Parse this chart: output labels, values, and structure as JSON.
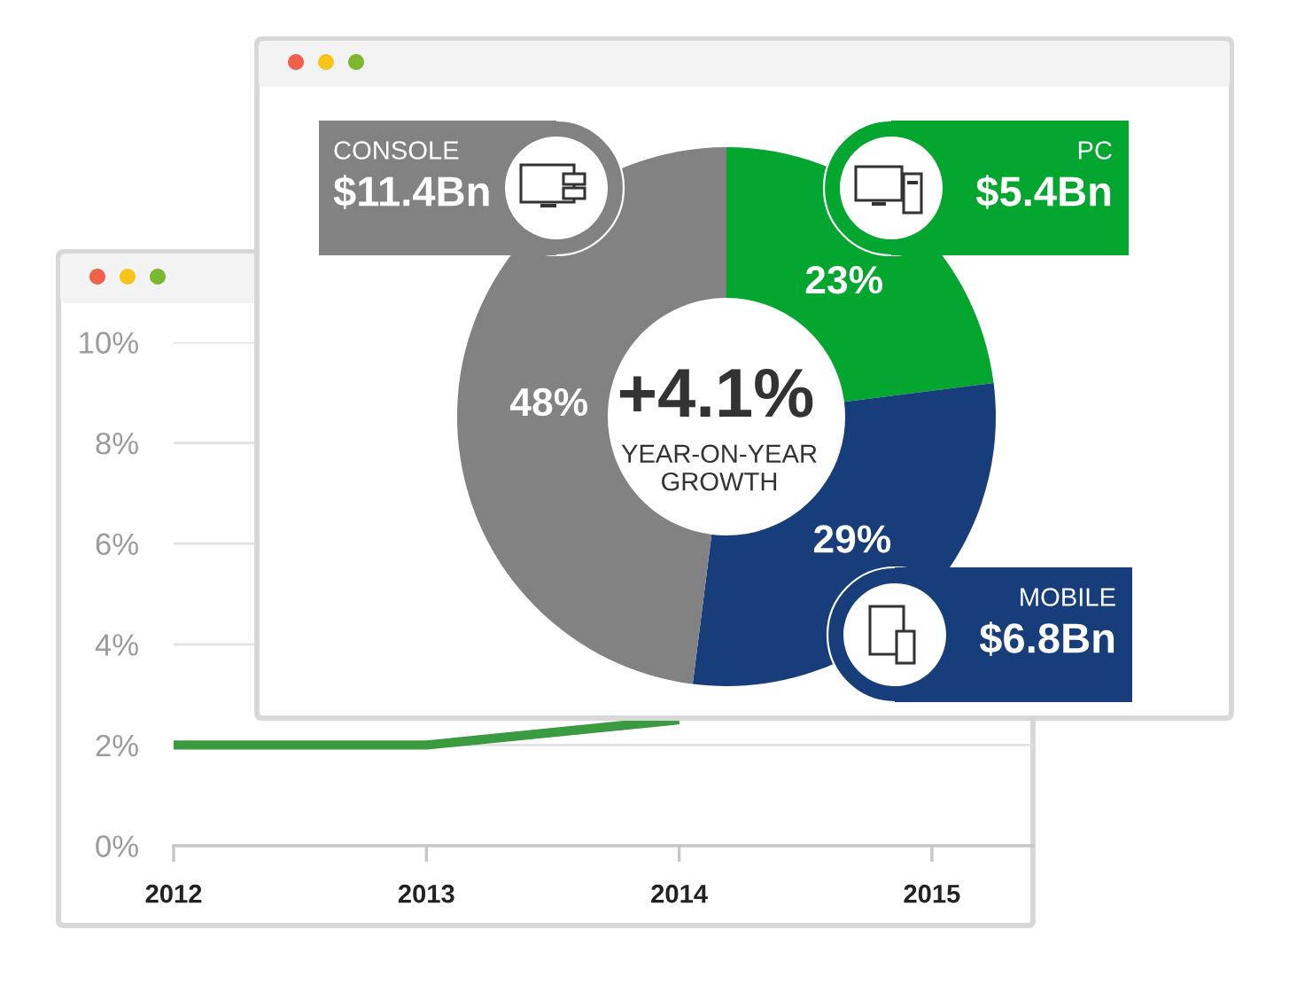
{
  "chart_data": [
    {
      "type": "line",
      "categories": [
        "2012",
        "2013",
        "2014",
        "2015"
      ],
      "series": [
        {
          "color": "#3a9a40",
          "values": [
            2,
            2,
            2.5,
            null
          ]
        }
      ],
      "ylim": [
        0,
        10
      ],
      "yticks": [
        {
          "value": 0,
          "label": "0%"
        },
        {
          "value": 2,
          "label": "2%"
        },
        {
          "value": 4,
          "label": "4%"
        },
        {
          "value": 6,
          "label": "6%"
        },
        {
          "value": 8,
          "label": "8%"
        },
        {
          "value": 10,
          "label": "10%"
        }
      ],
      "grid": "y"
    },
    {
      "type": "donut",
      "categories": [
        "PC",
        "MOBILE",
        "CONSOLE"
      ],
      "values": [
        23,
        29,
        48
      ],
      "colors": [
        "#03a62e",
        "#173d7b",
        "#828282"
      ],
      "value_labels": [
        "23%",
        "29%",
        "48%"
      ],
      "annotations": [
        "$5.4Bn",
        "$6.8Bn",
        "$11.4Bn",
        "+4.1%",
        "YEAR-ON-YEAR\nGROWTH"
      ]
    }
  ]
}
